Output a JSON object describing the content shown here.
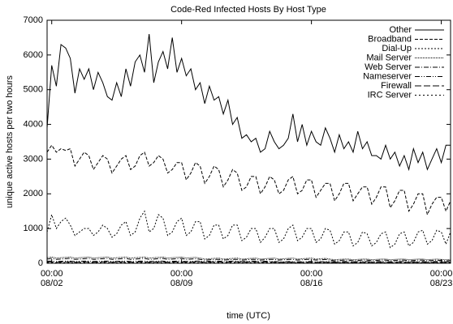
{
  "chart_data": {
    "type": "line",
    "title": "Code-Red Infected Hosts By Host Type",
    "xlabel": "time (UTC)",
    "ylabel": "unique active hosts per two hours",
    "x": [
      "08/01 18:00",
      "08/02 00:00",
      "08/02 06:00",
      "08/02 12:00",
      "08/02 18:00",
      "08/03 00:00",
      "08/03 06:00",
      "08/03 12:00",
      "08/03 18:00",
      "08/04 00:00",
      "08/04 06:00",
      "08/04 12:00",
      "08/04 18:00",
      "08/05 00:00",
      "08/05 06:00",
      "08/05 12:00",
      "08/05 18:00",
      "08/06 00:00",
      "08/06 06:00",
      "08/06 12:00",
      "08/06 18:00",
      "08/07 00:00",
      "08/07 06:00",
      "08/07 12:00",
      "08/07 18:00",
      "08/08 00:00",
      "08/08 06:00",
      "08/08 12:00",
      "08/08 18:00",
      "08/09 00:00",
      "08/09 06:00",
      "08/09 12:00",
      "08/09 18:00",
      "08/10 00:00",
      "08/10 06:00",
      "08/10 12:00",
      "08/10 18:00",
      "08/11 00:00",
      "08/11 06:00",
      "08/11 12:00",
      "08/11 18:00",
      "08/12 00:00",
      "08/12 06:00",
      "08/12 12:00",
      "08/12 18:00",
      "08/13 00:00",
      "08/13 06:00",
      "08/13 12:00",
      "08/13 18:00",
      "08/14 00:00",
      "08/14 06:00",
      "08/14 12:00",
      "08/14 18:00",
      "08/15 00:00",
      "08/15 06:00",
      "08/15 12:00",
      "08/15 18:00",
      "08/16 00:00",
      "08/16 06:00",
      "08/16 12:00",
      "08/16 18:00",
      "08/17 00:00",
      "08/17 06:00",
      "08/17 12:00",
      "08/17 18:00",
      "08/18 00:00",
      "08/18 06:00",
      "08/18 12:00",
      "08/18 18:00",
      "08/19 00:00",
      "08/19 06:00",
      "08/19 12:00",
      "08/19 18:00",
      "08/20 00:00",
      "08/20 06:00",
      "08/20 12:00",
      "08/20 18:00",
      "08/21 00:00",
      "08/21 06:00",
      "08/21 12:00",
      "08/21 18:00",
      "08/22 00:00",
      "08/22 06:00",
      "08/22 12:00",
      "08/22 18:00",
      "08/23 00:00",
      "08/23 06:00",
      "08/23 12:00"
    ],
    "xticks": [
      {
        "value": "08/02 00:00",
        "label": [
          "00:00",
          "08/02"
        ]
      },
      {
        "value": "08/09 00:00",
        "label": [
          "00:00",
          "08/09"
        ]
      },
      {
        "value": "08/16 00:00",
        "label": [
          "00:00",
          "08/16"
        ]
      },
      {
        "value": "08/23 00:00",
        "label": [
          "00:00",
          "08/23"
        ]
      }
    ],
    "ylim": [
      0,
      7000
    ],
    "yticks": [
      0,
      1000,
      2000,
      3000,
      4000,
      5000,
      6000,
      7000
    ],
    "legend": "top-right",
    "series": [
      {
        "name": "Other",
        "color": "#000000",
        "dash": "none",
        "values": [
          3900,
          5700,
          5100,
          6300,
          6200,
          5900,
          4900,
          5600,
          5300,
          5600,
          5000,
          5500,
          5200,
          4800,
          4700,
          5200,
          4800,
          5600,
          5100,
          5800,
          6000,
          5500,
          6600,
          5200,
          5800,
          6100,
          5600,
          6500,
          5500,
          5900,
          5400,
          5600,
          5000,
          5200,
          4600,
          5100,
          4700,
          4800,
          4300,
          4700,
          4000,
          4200,
          3600,
          3700,
          3500,
          3600,
          3200,
          3300,
          3800,
          3500,
          3300,
          3400,
          3600,
          4300,
          3500,
          4000,
          3400,
          3800,
          3500,
          3400,
          3900,
          3600,
          3200,
          3700,
          3300,
          3500,
          3200,
          3800,
          3300,
          3500,
          3100,
          3100,
          3000,
          3400,
          3000,
          3200,
          2800,
          3100,
          2700,
          3300,
          2900,
          3200,
          2700,
          3000,
          3300,
          2900,
          3400,
          3400
        ]
      },
      {
        "name": "Broadband",
        "color": "#000000",
        "dash": "4,2",
        "values": [
          3200,
          3400,
          3200,
          3300,
          3250,
          3300,
          2800,
          3000,
          3200,
          3100,
          2700,
          2900,
          3100,
          3000,
          2600,
          2800,
          3000,
          3100,
          2700,
          2800,
          3100,
          3200,
          2800,
          2900,
          3100,
          3000,
          2600,
          2700,
          2900,
          2900,
          2400,
          2600,
          2900,
          2800,
          2300,
          2500,
          2800,
          2700,
          2200,
          2400,
          2700,
          2600,
          2100,
          2200,
          2500,
          2500,
          2000,
          2200,
          2500,
          2400,
          2000,
          2100,
          2400,
          2500,
          2000,
          2100,
          2400,
          2400,
          1900,
          2100,
          2300,
          2300,
          1800,
          2000,
          2300,
          2300,
          1800,
          2000,
          2200,
          2200,
          1700,
          1900,
          2200,
          2200,
          1600,
          1800,
          2100,
          2100,
          1500,
          1700,
          2000,
          2000,
          1400,
          1700,
          1900,
          1900,
          1500,
          1800
        ]
      },
      {
        "name": "Dial-Up",
        "color": "#000000",
        "dash": "2,2",
        "values": [
          900,
          1400,
          1000,
          1200,
          1300,
          1100,
          800,
          900,
          1000,
          1000,
          800,
          900,
          1100,
          1000,
          750,
          850,
          1100,
          1200,
          800,
          900,
          1300,
          1500,
          900,
          1000,
          1400,
          1300,
          800,
          900,
          1200,
          1300,
          800,
          900,
          1200,
          1200,
          700,
          800,
          1100,
          1100,
          700,
          800,
          1100,
          1100,
          650,
          750,
          1000,
          1000,
          600,
          750,
          1000,
          1000,
          600,
          700,
          1000,
          1100,
          650,
          750,
          1000,
          1000,
          600,
          700,
          1000,
          950,
          550,
          650,
          900,
          900,
          500,
          600,
          900,
          850,
          500,
          600,
          850,
          900,
          450,
          550,
          850,
          900,
          500,
          600,
          900,
          950,
          550,
          650,
          950,
          900,
          550,
          900
        ]
      },
      {
        "name": "Mail Server",
        "color": "#000000",
        "dash": "1,1",
        "values": [
          160,
          180,
          150,
          160,
          170,
          180,
          150,
          160,
          170,
          180,
          150,
          160,
          170,
          180,
          150,
          160,
          170,
          180,
          150,
          160,
          170,
          180,
          150,
          160,
          170,
          180,
          150,
          160,
          170,
          180,
          150,
          160,
          170,
          150,
          120,
          130,
          140,
          150,
          120,
          130,
          140,
          150,
          120,
          130,
          140,
          150,
          120,
          130,
          140,
          150,
          120,
          130,
          140,
          150,
          120,
          130,
          140,
          150,
          120,
          130,
          140,
          120,
          100,
          110,
          120,
          120,
          100,
          110,
          120,
          120,
          100,
          110,
          120,
          120,
          100,
          110,
          120,
          120,
          100,
          110,
          120,
          120,
          100,
          110,
          120,
          110,
          100,
          110
        ]
      },
      {
        "name": "Web Server",
        "color": "#000000",
        "dash": "6,2,1,2",
        "values": [
          120,
          140,
          110,
          120,
          130,
          140,
          110,
          120,
          130,
          140,
          110,
          120,
          130,
          140,
          110,
          120,
          130,
          140,
          110,
          120,
          130,
          140,
          110,
          120,
          130,
          140,
          110,
          120,
          130,
          140,
          110,
          120,
          130,
          110,
          90,
          100,
          110,
          110,
          90,
          100,
          110,
          110,
          90,
          100,
          110,
          110,
          90,
          100,
          110,
          110,
          90,
          100,
          110,
          110,
          90,
          100,
          110,
          110,
          90,
          100,
          110,
          90,
          70,
          80,
          90,
          90,
          70,
          80,
          90,
          90,
          70,
          80,
          90,
          90,
          70,
          80,
          90,
          90,
          70,
          80,
          90,
          90,
          70,
          80,
          90,
          80,
          70,
          80
        ]
      },
      {
        "name": "Nameserver",
        "color": "#000000",
        "dash": "6,2,1,2,1,2",
        "values": [
          60,
          60,
          50,
          55,
          60,
          60,
          50,
          55,
          60,
          60,
          50,
          55,
          60,
          60,
          50,
          55,
          60,
          60,
          50,
          55,
          60,
          60,
          50,
          55,
          60,
          60,
          50,
          55,
          60,
          60,
          50,
          55,
          60,
          60,
          50,
          55,
          60,
          60,
          50,
          55,
          60,
          60,
          50,
          55,
          60,
          60,
          50,
          55,
          60,
          50,
          40,
          45,
          50,
          50,
          40,
          45,
          50,
          50,
          40,
          45,
          50,
          50,
          40,
          45,
          50,
          50,
          40,
          45,
          50,
          50,
          40,
          45,
          50,
          50,
          40,
          45,
          50,
          50,
          40,
          45,
          50,
          50,
          40,
          45,
          50,
          50,
          40,
          45
        ]
      },
      {
        "name": "Firewall",
        "color": "#000000",
        "dash": "8,3",
        "values": [
          40,
          40,
          30,
          35,
          40,
          40,
          30,
          35,
          40,
          40,
          30,
          35,
          40,
          40,
          30,
          35,
          40,
          40,
          30,
          35,
          40,
          40,
          30,
          35,
          40,
          40,
          30,
          35,
          40,
          40,
          30,
          35,
          40,
          40,
          30,
          35,
          40,
          40,
          30,
          35,
          40,
          40,
          30,
          35,
          40,
          40,
          30,
          35,
          40,
          30,
          25,
          28,
          30,
          30,
          25,
          28,
          30,
          30,
          25,
          28,
          30,
          30,
          25,
          28,
          30,
          30,
          25,
          28,
          30,
          30,
          25,
          28,
          30,
          30,
          25,
          28,
          30,
          30,
          25,
          28,
          30,
          30,
          25,
          28,
          30,
          30,
          25,
          28
        ]
      },
      {
        "name": "IRC Server",
        "color": "#000000",
        "dash": "2,3",
        "values": [
          20,
          20,
          15,
          18,
          20,
          20,
          15,
          18,
          20,
          20,
          15,
          18,
          20,
          20,
          15,
          18,
          20,
          20,
          15,
          18,
          20,
          20,
          15,
          18,
          20,
          20,
          15,
          18,
          20,
          20,
          15,
          18,
          20,
          20,
          15,
          18,
          20,
          20,
          15,
          18,
          20,
          20,
          15,
          18,
          20,
          20,
          15,
          18,
          20,
          15,
          12,
          14,
          15,
          15,
          12,
          14,
          15,
          15,
          12,
          14,
          15,
          15,
          12,
          14,
          15,
          15,
          12,
          14,
          15,
          15,
          12,
          14,
          15,
          15,
          12,
          14,
          15,
          15,
          12,
          14,
          15,
          15,
          12,
          14,
          15,
          15,
          12,
          14
        ]
      }
    ]
  }
}
